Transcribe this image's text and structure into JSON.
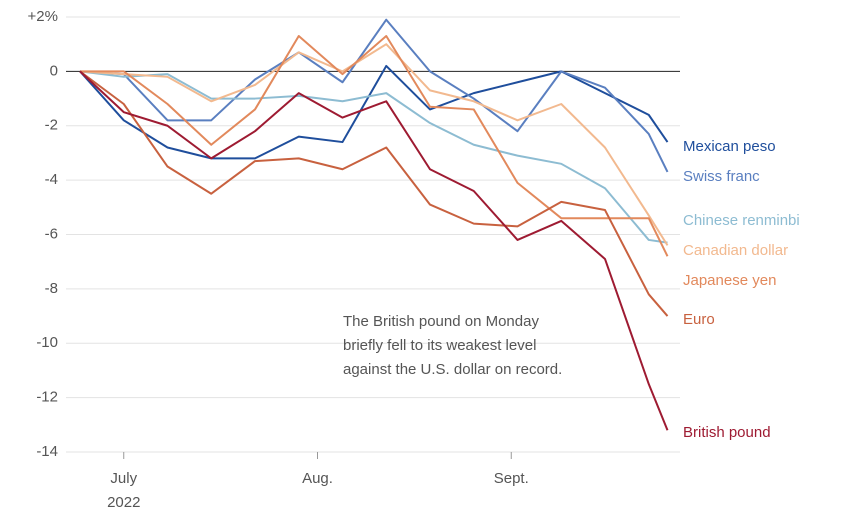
{
  "chart_data": {
    "type": "line",
    "annotation": [
      "The British pound on Monday",
      "briefly fell to its weakest level",
      "against the U.S. dollar on record."
    ],
    "x": [
      0,
      7,
      14,
      21,
      28,
      35,
      42,
      49,
      56,
      63,
      70,
      77,
      84,
      91,
      94
    ],
    "xlim": [
      0,
      96
    ],
    "xticks": [
      {
        "value": 7,
        "label": "July 2022"
      },
      {
        "value": 38,
        "label": "Aug."
      },
      {
        "value": 69,
        "label": "Sept."
      }
    ],
    "ylim": [
      -14,
      2
    ],
    "yticks": [
      {
        "value": 2,
        "label": "+2%"
      },
      0,
      -2,
      -4,
      -6,
      -8,
      -10,
      -12,
      -14
    ],
    "grid": true,
    "series": [
      {
        "name": "Mexican peso",
        "color": "#1f4e9c",
        "values": [
          0,
          -1.8,
          -2.8,
          -3.2,
          -3.2,
          -2.4,
          -2.6,
          0.2,
          -1.4,
          -0.8,
          -0.4,
          0,
          -0.8,
          -1.6,
          -2.6
        ]
      },
      {
        "name": "Swiss franc",
        "color": "#5a7fc0",
        "values": [
          0,
          -0.1,
          -1.8,
          -1.8,
          -0.3,
          0.7,
          -0.4,
          1.9,
          0,
          -1.0,
          -2.2,
          0,
          -0.6,
          -2.3,
          -3.7
        ]
      },
      {
        "name": "Chinese renminbi",
        "color": "#8dbcd2",
        "values": [
          0,
          -0.2,
          -0.1,
          -1.0,
          -1.0,
          -0.9,
          -1.1,
          -0.8,
          -1.9,
          -2.7,
          -3.1,
          -3.4,
          -4.3,
          -6.2,
          -6.3
        ]
      },
      {
        "name": "Canadian dollar",
        "color": "#f2b98f",
        "values": [
          0,
          -0.1,
          -0.2,
          -1.1,
          -0.5,
          0.7,
          0,
          1.0,
          -0.7,
          -1.1,
          -1.8,
          -1.2,
          -2.8,
          -5.3,
          -6.4
        ]
      },
      {
        "name": "Japanese yen",
        "color": "#e2895c",
        "values": [
          0,
          0,
          -1.2,
          -2.7,
          -1.4,
          1.3,
          -0.1,
          1.3,
          -1.3,
          -1.4,
          -4.1,
          -5.4,
          -5.4,
          -5.4,
          -6.8
        ]
      },
      {
        "name": "Euro",
        "color": "#c8613f",
        "values": [
          0,
          -1.2,
          -3.5,
          -4.5,
          -3.3,
          -3.2,
          -3.6,
          -2.8,
          -4.9,
          -5.6,
          -5.7,
          -4.8,
          -5.1,
          -8.2,
          -9.0
        ]
      },
      {
        "name": "British pound",
        "color": "#9e1b32",
        "values": [
          0,
          -1.5,
          -2.0,
          -3.2,
          -2.2,
          -0.8,
          -1.7,
          -1.1,
          -3.6,
          -4.4,
          -6.2,
          -5.5,
          -6.9,
          -11.5,
          -13.2
        ]
      }
    ]
  }
}
